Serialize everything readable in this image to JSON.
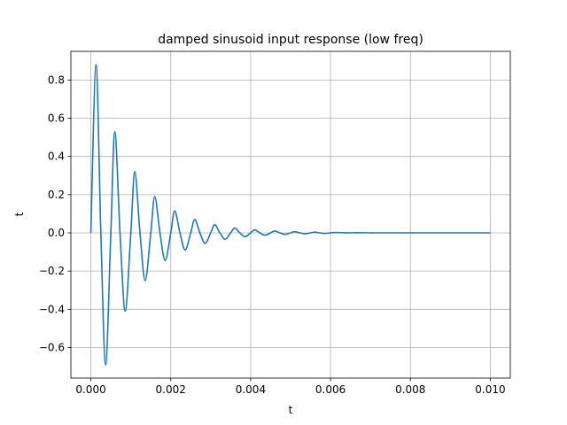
{
  "chart_data": {
    "type": "line",
    "title": "damped sinusoid input response (low freq)",
    "xlabel": "t",
    "ylabel": "t",
    "xlim": [
      -0.0005,
      0.0105
    ],
    "ylim": [
      -0.76,
      0.95
    ],
    "xticks": [
      0.0,
      0.002,
      0.004,
      0.006,
      0.008,
      0.01
    ],
    "xtick_labels": [
      "0.000",
      "0.002",
      "0.004",
      "0.006",
      "0.008",
      "0.010"
    ],
    "yticks": [
      -0.6,
      -0.4,
      -0.2,
      0.0,
      0.2,
      0.4,
      0.6,
      0.8
    ],
    "ytick_labels": [
      "−0.6",
      "−0.4",
      "−0.2",
      "0.0",
      "0.2",
      "0.4",
      "0.6",
      "0.8"
    ],
    "grid": true,
    "series": [
      {
        "color": "#1f77b4",
        "x": [
          0.0,
          0.00013,
          0.00025,
          0.00037,
          0.0005,
          0.0006,
          0.00073,
          0.00086,
          0.001,
          0.0011,
          0.00123,
          0.00136,
          0.0015,
          0.0016,
          0.00173,
          0.00186,
          0.002,
          0.0021,
          0.00223,
          0.00236,
          0.0025,
          0.0026,
          0.00273,
          0.00286,
          0.003,
          0.0031,
          0.00323,
          0.00336,
          0.0035,
          0.0036,
          0.00373,
          0.00386,
          0.004,
          0.0041,
          0.00423,
          0.00436,
          0.0045,
          0.0046,
          0.00473,
          0.00486,
          0.005,
          0.0051,
          0.00523,
          0.00536,
          0.0055,
          0.0056,
          0.00573,
          0.00586,
          0.006,
          0.0061,
          0.0065,
          0.0066,
          0.007,
          0.0071,
          0.0075,
          0.008,
          0.009,
          0.01
        ],
        "y": [
          0.0,
          0.88,
          0.0,
          -0.69,
          0.0,
          0.53,
          0.0,
          -0.41,
          0.0,
          0.32,
          0.0,
          -0.25,
          0.0,
          0.19,
          0.0,
          -0.145,
          0.0,
          0.115,
          0.0,
          -0.09,
          0.0,
          0.07,
          0.0,
          -0.055,
          0.0,
          0.043,
          0.0,
          -0.034,
          0.0,
          0.026,
          0.0,
          -0.02,
          0.0,
          0.016,
          0.0,
          -0.012,
          0.0,
          0.01,
          0.0,
          -0.008,
          0.0,
          0.006,
          0.0,
          -0.005,
          0.0,
          0.004,
          0.0,
          -0.003,
          0.0,
          0.002,
          0.0,
          0.001,
          0.0,
          0.0,
          0.0,
          0.0,
          0.0,
          0.0
        ]
      }
    ]
  }
}
